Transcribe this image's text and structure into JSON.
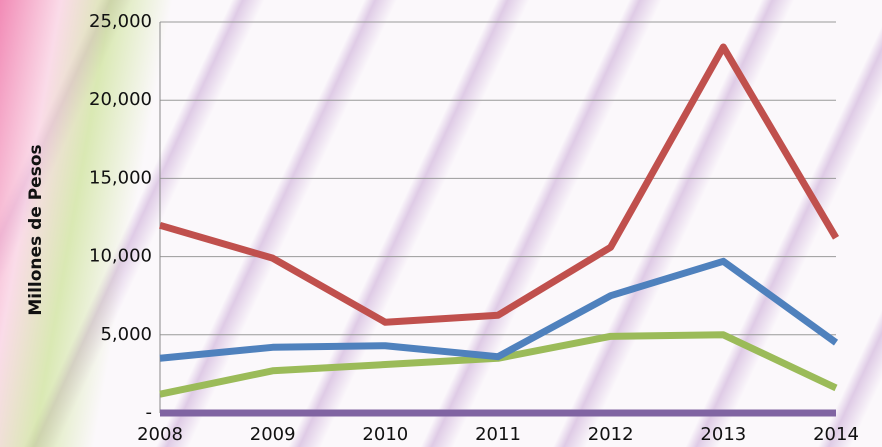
{
  "chart_data": {
    "type": "line",
    "y_label": "Millones de Pesos",
    "categories": [
      "2008",
      "2009",
      "2010",
      "2011",
      "2012",
      "2013",
      "2014"
    ],
    "series": [
      {
        "color": "#8064a2",
        "values": [
          0,
          0,
          0,
          0,
          0,
          0,
          0
        ]
      },
      {
        "color": "#9bbb59",
        "values": [
          1200,
          2700,
          3100,
          3500,
          4900,
          5000,
          1600
        ]
      },
      {
        "color": "#4f81bd",
        "values": [
          3500,
          4200,
          4300,
          3600,
          7500,
          9700,
          4500
        ]
      },
      {
        "color": "#c0504d",
        "values": [
          12000,
          9900,
          5800,
          6250,
          10600,
          23400,
          11200
        ]
      }
    ],
    "ylim": [
      0,
      25000
    ],
    "yticks": [
      {
        "value": 0,
        "label": "-"
      },
      {
        "value": 5000,
        "label": "5,000"
      },
      {
        "value": 10000,
        "label": "10,000"
      },
      {
        "value": 15000,
        "label": "15,000"
      },
      {
        "value": 20000,
        "label": "20,000"
      },
      {
        "value": 25000,
        "label": "25,000"
      }
    ],
    "grid": true
  }
}
